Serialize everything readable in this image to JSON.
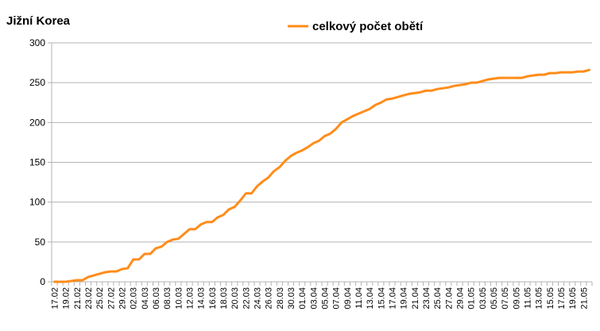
{
  "chart_data": {
    "type": "line",
    "title": "Jižní Korea",
    "xlabel": "",
    "ylabel": "",
    "ylim": [
      0,
      300
    ],
    "yticks": [
      0,
      50,
      100,
      150,
      200,
      250,
      300
    ],
    "grid": true,
    "legend": "top-center",
    "colors": {
      "line": "#ff8c1a",
      "grid": "#b3b3b3"
    },
    "x_tick_labels": [
      "17.02",
      "19.02",
      "21.02",
      "23.02",
      "25.02",
      "27.02",
      "29.02",
      "02.03",
      "04.03",
      "06.03",
      "08.03",
      "10.03",
      "12.03",
      "14.03",
      "16.03",
      "18.03",
      "20.03",
      "22.03",
      "24.03",
      "26.03",
      "28.03",
      "30.03",
      "01.04",
      "03.04",
      "05.04",
      "07.04",
      "09.04",
      "11.04",
      "13.04",
      "15.04",
      "17.04",
      "19.04",
      "21.04",
      "23.04",
      "25.04",
      "27.04",
      "29.04",
      "01.05",
      "03.05",
      "05.05",
      "07.05",
      "09.05",
      "11.05",
      "13.05",
      "15.05",
      "17.05",
      "19.05",
      "21.05"
    ],
    "series": [
      {
        "name": "celkový počet obětí",
        "start_date": "17.02",
        "values": [
          0,
          0,
          0,
          1,
          2,
          2,
          6,
          8,
          10,
          12,
          13,
          13,
          16,
          17,
          28,
          28,
          35,
          35,
          42,
          44,
          50,
          53,
          54,
          60,
          66,
          66,
          72,
          75,
          75,
          81,
          84,
          91,
          94,
          102,
          111,
          111,
          120,
          126,
          131,
          139,
          144,
          152,
          158,
          162,
          165,
          169,
          174,
          177,
          183,
          186,
          192,
          200,
          204,
          208,
          211,
          214,
          217,
          222,
          225,
          229,
          230,
          232,
          234,
          236,
          237,
          238,
          240,
          240,
          242,
          243,
          244,
          246,
          247,
          248,
          250,
          250,
          252,
          254,
          255,
          256,
          256,
          256,
          256,
          256,
          258,
          259,
          260,
          260,
          262,
          262,
          263,
          263,
          263,
          264,
          264,
          266
        ]
      }
    ]
  }
}
